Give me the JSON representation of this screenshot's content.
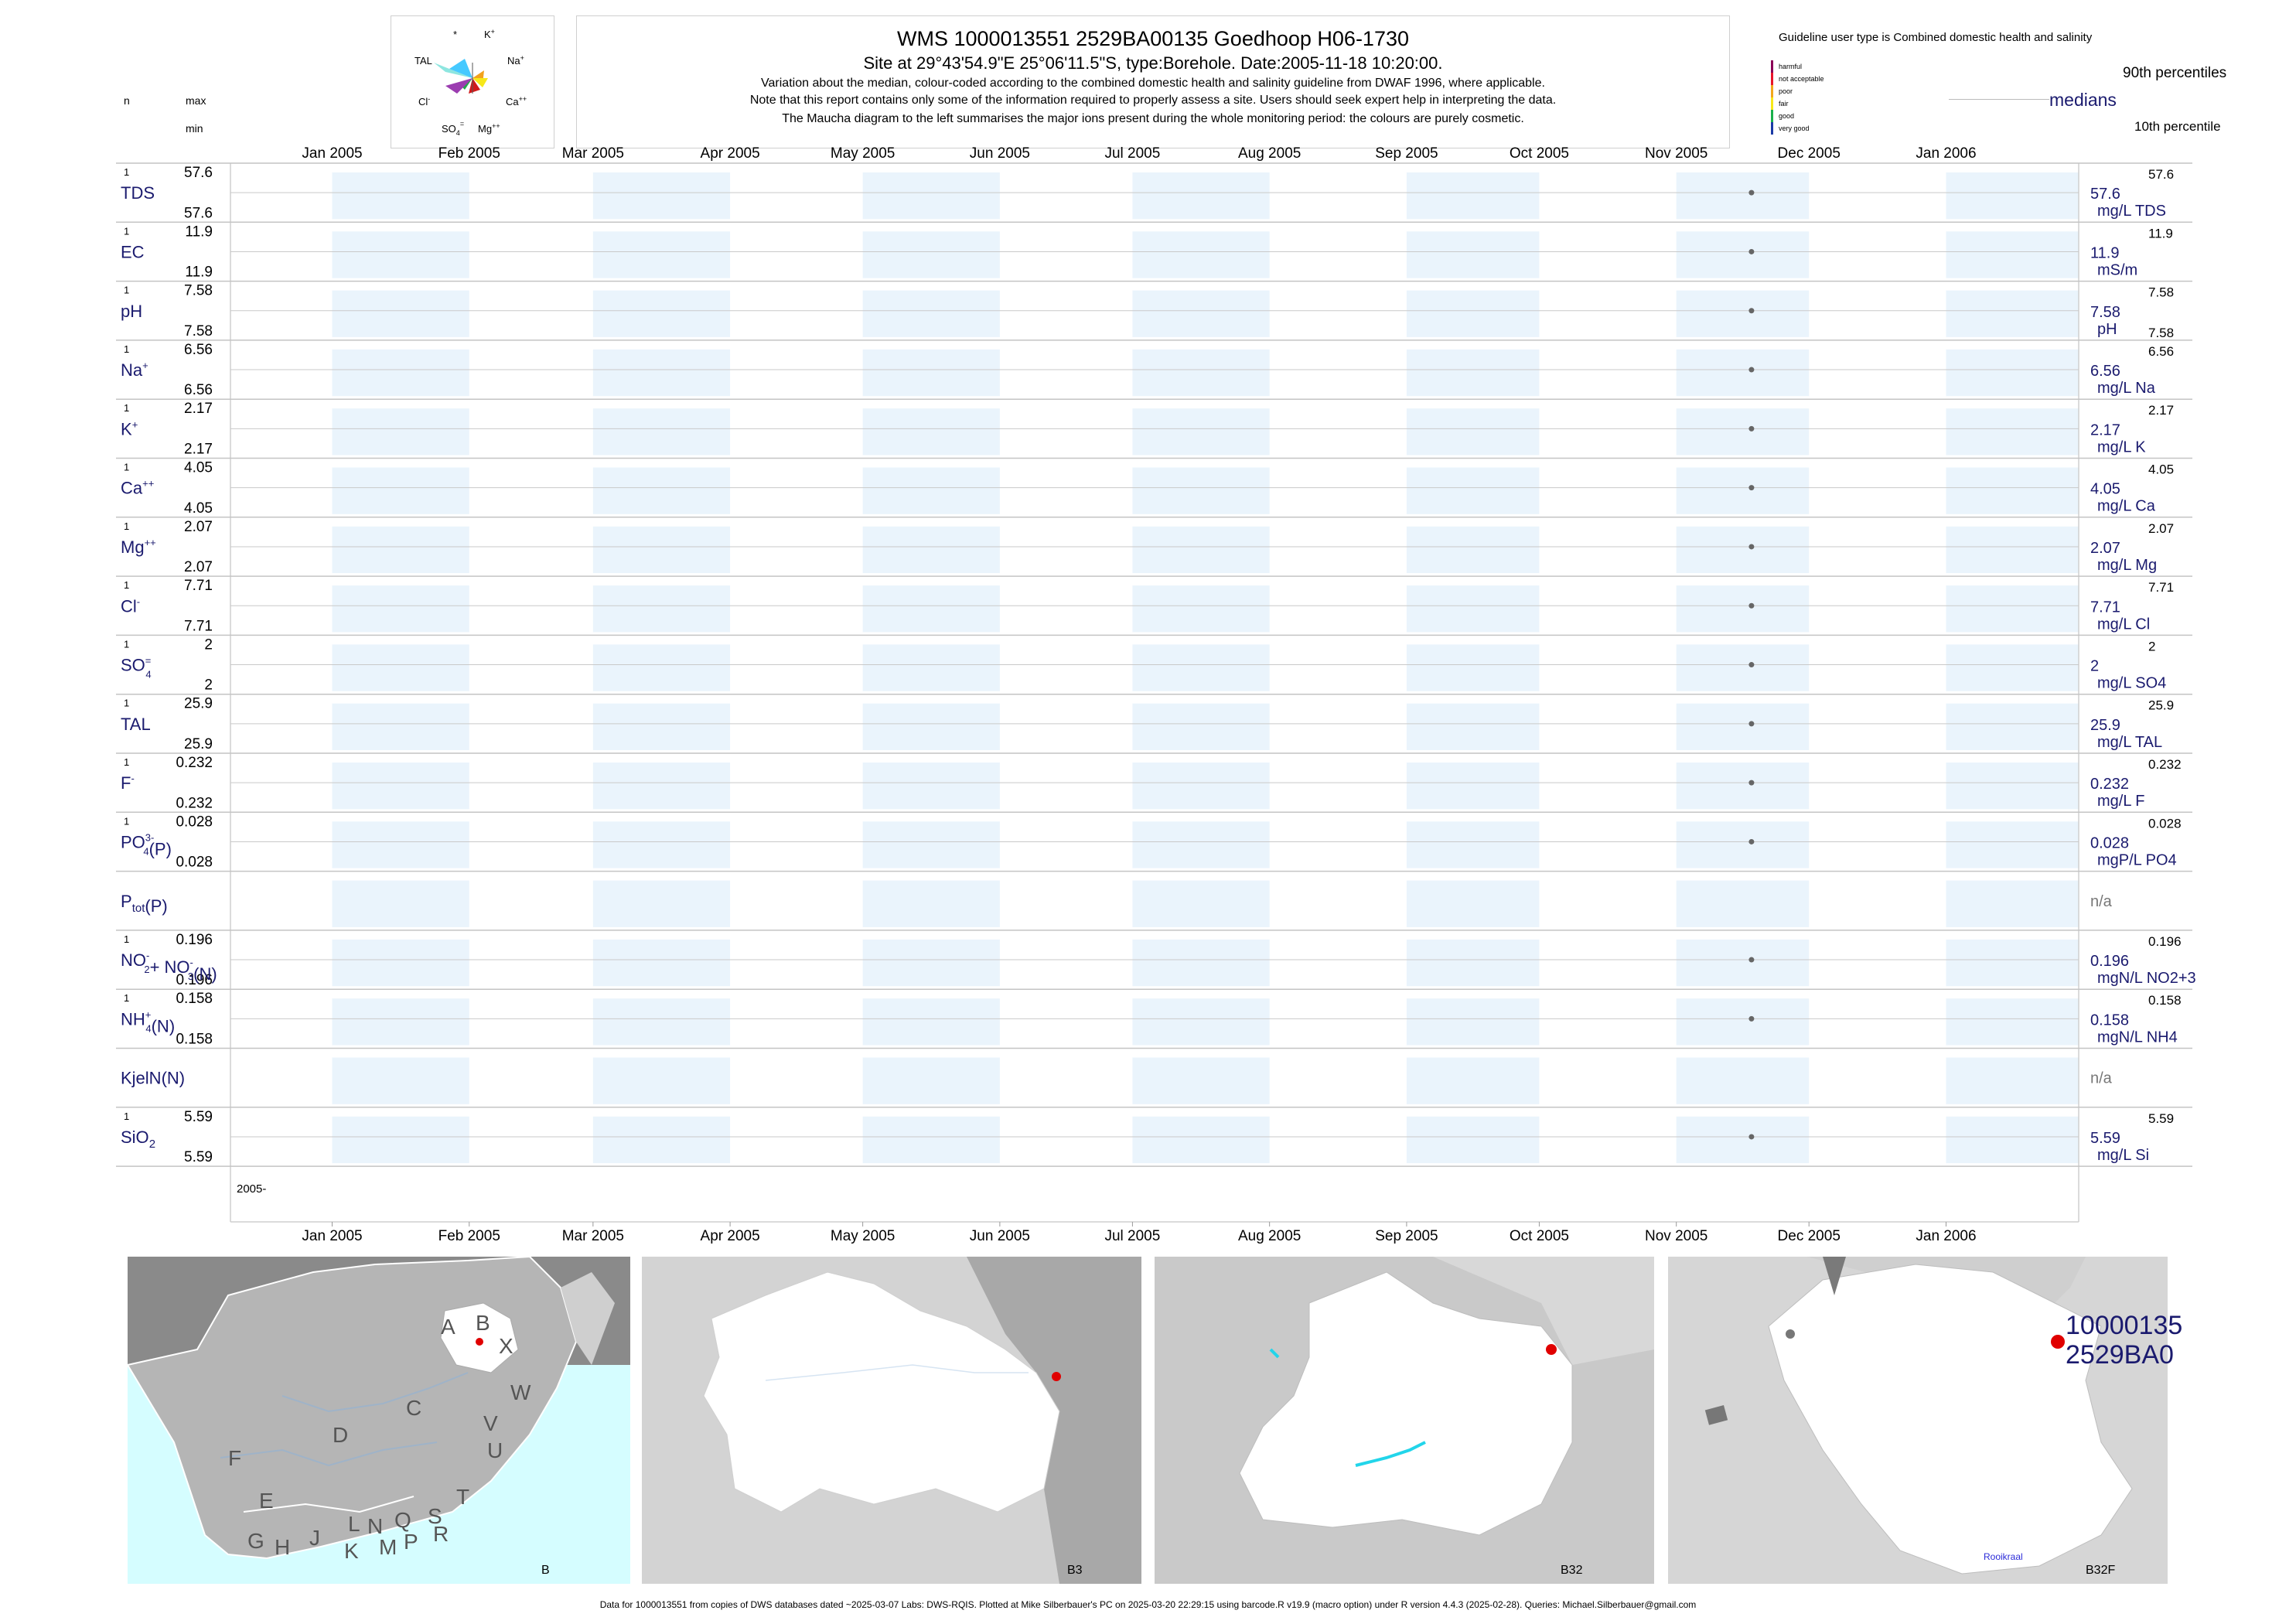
{
  "header": {
    "title": "WMS 1000013551 2529BA00135 Goedhoop H06-1730",
    "subtitle": "Site at 29°43'54.9\"E 25°06'11.5\"S, type:Borehole. Date:2005-11-18 10:20:00.",
    "note1": "Variation about the median,  colour-coded according to the combined domestic health and salinity guideline from DWAF 1996, where applicable.",
    "note2": "Note that this report contains only some of the information required to properly assess a site. Users should seek expert help in interpreting the data.",
    "note3": "The Maucha diagram to the left summarises the major ions present during the whole monitoring period: the colours are purely cosmetic."
  },
  "left_header": {
    "n": "n",
    "max": "max",
    "min": "min"
  },
  "maucha": {
    "labels": [
      "*",
      "K+",
      "TAL",
      "Na+",
      "Cl-",
      "Ca++",
      "SO4=",
      "Mg++"
    ]
  },
  "legend": {
    "guideline_text": "Guideline user type is Combined domestic health and salinity",
    "classes": [
      {
        "label": "harmful",
        "color": "#8b0057"
      },
      {
        "label": "not acceptable",
        "color": "#e8152b"
      },
      {
        "label": "poor",
        "color": "#f2a81d"
      },
      {
        "label": "fair",
        "color": "#f7e819"
      },
      {
        "label": "good",
        "color": "#1ab04b"
      },
      {
        "label": "very good",
        "color": "#1b3aa6"
      }
    ],
    "p90": "90th percentiles",
    "medians": "medians",
    "p10": "10th percentile"
  },
  "chart_data": {
    "type": "scatter",
    "x_axis_months": [
      "Jan 2005",
      "Feb 2005",
      "Mar 2005",
      "Apr 2005",
      "May 2005",
      "Jun 2005",
      "Jul 2005",
      "Aug 2005",
      "Sep 2005",
      "Oct 2005",
      "Nov 2005",
      "Dec 2005",
      "Jan 2006"
    ],
    "xlim": [
      "2004-12-09",
      "2006-01-31"
    ],
    "year_label": "2005-",
    "sample_date": "2005-11-18",
    "series": [
      {
        "label": "TDS",
        "sup": "",
        "sub": "",
        "n": "1",
        "max": "57.6",
        "min": "57.6",
        "median": "57.6",
        "unit": "mg/L TDS",
        "p90": "57.6",
        "p10": "",
        "value": 57.6
      },
      {
        "label": "EC",
        "sup": "",
        "sub": "",
        "n": "1",
        "max": "11.9",
        "min": "11.9",
        "median": "11.9",
        "unit": "mS/m",
        "p90": "11.9",
        "p10": "",
        "value": 11.9
      },
      {
        "label": "pH",
        "sup": "",
        "sub": "",
        "n": "1",
        "max": "7.58",
        "min": "7.58",
        "median": "7.58",
        "unit": "pH",
        "p90": "7.58",
        "p10": "7.58",
        "value": 7.58
      },
      {
        "label": "Na",
        "sup": "+",
        "sub": "",
        "n": "1",
        "max": "6.56",
        "min": "6.56",
        "median": "6.56",
        "unit": "mg/L Na",
        "p90": "6.56",
        "p10": "",
        "value": 6.56
      },
      {
        "label": "K",
        "sup": "+",
        "sub": "",
        "n": "1",
        "max": "2.17",
        "min": "2.17",
        "median": "2.17",
        "unit": "mg/L K",
        "p90": "2.17",
        "p10": "",
        "value": 2.17
      },
      {
        "label": "Ca",
        "sup": "++",
        "sub": "",
        "n": "1",
        "max": "4.05",
        "min": "4.05",
        "median": "4.05",
        "unit": "mg/L Ca",
        "p90": "4.05",
        "p10": "",
        "value": 4.05
      },
      {
        "label": "Mg",
        "sup": "++",
        "sub": "",
        "n": "1",
        "max": "2.07",
        "min": "2.07",
        "median": "2.07",
        "unit": "mg/L Mg",
        "p90": "2.07",
        "p10": "",
        "value": 2.07
      },
      {
        "label": "Cl",
        "sup": "-",
        "sub": "",
        "n": "1",
        "max": "7.71",
        "min": "7.71",
        "median": "7.71",
        "unit": "mg/L Cl",
        "p90": "7.71",
        "p10": "",
        "value": 7.71
      },
      {
        "label": "SO",
        "sup": "=",
        "sub": "4",
        "n": "1",
        "max": "2",
        "min": "2",
        "median": "2",
        "unit": "mg/L SO4",
        "p90": "2",
        "p10": "",
        "value": 2
      },
      {
        "label": "TAL",
        "sup": "",
        "sub": "",
        "n": "1",
        "max": "25.9",
        "min": "25.9",
        "median": "25.9",
        "unit": "mg/L TAL",
        "p90": "25.9",
        "p10": "",
        "value": 25.9
      },
      {
        "label": "F",
        "sup": "-",
        "sub": "",
        "n": "1",
        "max": "0.232",
        "min": "0.232",
        "median": "0.232",
        "unit": "mg/L F",
        "p90": "0.232",
        "p10": "",
        "value": 0.232
      },
      {
        "label": "PO",
        "sup": "3-",
        "sub": "4",
        "suffix": "(P)",
        "n": "1",
        "max": "0.028",
        "min": "0.028",
        "median": "0.028",
        "unit": "mgP/L PO4",
        "p90": "0.028",
        "p10": "",
        "value": 0.028
      },
      {
        "label": "P",
        "sup": "",
        "sub": "tot",
        "suffix": "(P)",
        "n": "",
        "max": "",
        "min": "",
        "median": "n/a",
        "unit": "",
        "p90": "",
        "p10": "",
        "value": null
      },
      {
        "label": "NO",
        "sup": "-",
        "sub": "2",
        "suffix": "+ NO",
        "sup2": "-",
        "sub2": "3",
        "suffix2": "(N)",
        "n": "1",
        "max": "0.196",
        "min": "0.196",
        "median": "0.196",
        "unit": "mgN/L NO2+3",
        "p90": "0.196",
        "p10": "",
        "value": 0.196
      },
      {
        "label": "NH",
        "sup": "+",
        "sub": "4",
        "suffix": "(N)",
        "n": "1",
        "max": "0.158",
        "min": "0.158",
        "median": "0.158",
        "unit": "mgN/L NH4",
        "p90": "0.158",
        "p10": "",
        "value": 0.158
      },
      {
        "label": "KjelN(N)",
        "sup": "",
        "sub": "",
        "n": "",
        "max": "",
        "min": "",
        "median": "n/a",
        "unit": "",
        "p90": "",
        "p10": "",
        "value": null
      },
      {
        "label": "SiO",
        "sup": "",
        "sub": "2",
        "n": "1",
        "max": "5.59",
        "min": "5.59",
        "median": "5.59",
        "unit": "mg/L Si",
        "p90": "5.59",
        "p10": "",
        "value": 5.59
      }
    ]
  },
  "maps": [
    {
      "caption": "B",
      "regions": [
        "A",
        "B",
        "X",
        "W",
        "C",
        "V",
        "U",
        "D",
        "T",
        "F",
        "E",
        "S",
        "R",
        "L",
        "N",
        "Q",
        "J",
        "M",
        "P",
        "G",
        "H",
        "K"
      ]
    },
    {
      "caption": "B3"
    },
    {
      "caption": "B32"
    },
    {
      "caption": "B32F",
      "site_label_1": "10000135",
      "site_label_2": "2529BA0",
      "place": "Rooikraal"
    }
  ],
  "footer": "Data for 1000013551 from copies of DWS databases dated ~2025-03-07 Labs: DWS-RQIS. Plotted at Mike Silberbauer's PC on 2025-03-20 22:29:15 using barcode.R v19.9 (macro option) under R version 4.4.3 (2025-02-28). Queries: Michael.Silberbauer@gmail.com"
}
